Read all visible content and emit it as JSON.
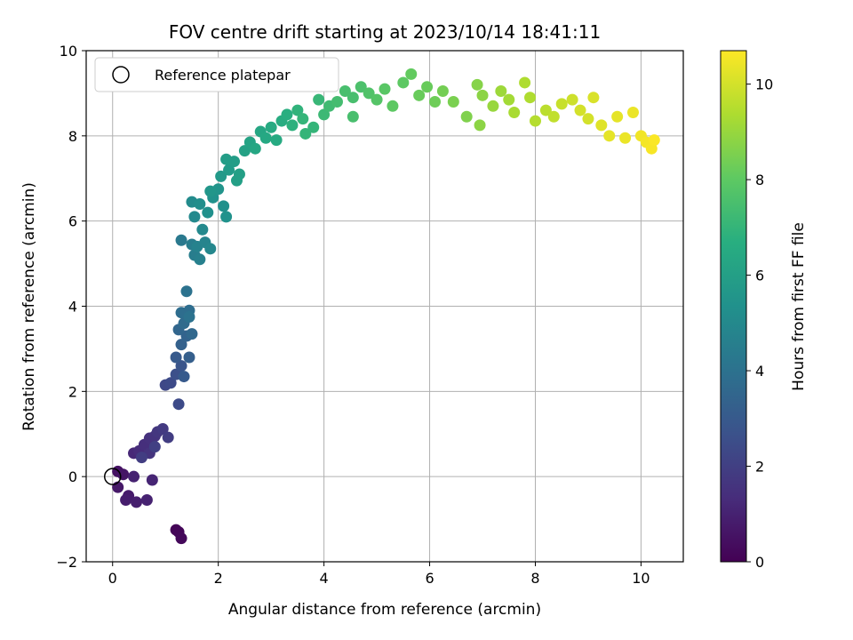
{
  "chart_data": {
    "type": "scatter",
    "title": "FOV centre drift starting at 2023/10/14 18:41:11",
    "xlabel": "Angular distance from reference (arcmin)",
    "ylabel": "Rotation from reference (arcmin)",
    "xlim": [
      -0.5,
      10.8
    ],
    "ylim": [
      -2,
      10
    ],
    "xticks": [
      "0",
      "2",
      "4",
      "6",
      "8",
      "10"
    ],
    "yticks": [
      "−2",
      "0",
      "2",
      "4",
      "6",
      "8",
      "10"
    ],
    "grid": true,
    "legend": {
      "position": "top-left",
      "entries": [
        "Reference platepar"
      ]
    },
    "reference_point": {
      "x": 0,
      "y": 0
    },
    "colorbar": {
      "label": "Hours from first FF file",
      "range": [
        0,
        10.7
      ],
      "ticks": [
        "0",
        "2",
        "4",
        "6",
        "8",
        "10"
      ],
      "colormap": "viridis"
    },
    "points": [
      {
        "x": 1.2,
        "y": -1.25,
        "t": 0.1
      },
      {
        "x": 1.25,
        "y": -1.3,
        "t": 0.15
      },
      {
        "x": 1.3,
        "y": -1.45,
        "t": 0.2
      },
      {
        "x": 0.1,
        "y": 0.12,
        "t": 0.5
      },
      {
        "x": 0.2,
        "y": 0.05,
        "t": 0.6
      },
      {
        "x": 0.1,
        "y": -0.25,
        "t": 0.7
      },
      {
        "x": 0.3,
        "y": -0.45,
        "t": 0.8
      },
      {
        "x": 0.25,
        "y": -0.55,
        "t": 0.85
      },
      {
        "x": 0.45,
        "y": -0.6,
        "t": 0.9
      },
      {
        "x": 0.65,
        "y": -0.55,
        "t": 1.0
      },
      {
        "x": 0.4,
        "y": 0.0,
        "t": 1.0
      },
      {
        "x": 0.75,
        "y": -0.08,
        "t": 1.1
      },
      {
        "x": 0.4,
        "y": 0.55,
        "t": 1.2
      },
      {
        "x": 0.5,
        "y": 0.6,
        "t": 1.3
      },
      {
        "x": 0.6,
        "y": 0.75,
        "t": 1.4
      },
      {
        "x": 0.7,
        "y": 0.9,
        "t": 1.5
      },
      {
        "x": 0.8,
        "y": 0.95,
        "t": 1.6
      },
      {
        "x": 0.7,
        "y": 0.55,
        "t": 1.6
      },
      {
        "x": 0.85,
        "y": 1.05,
        "t": 1.7
      },
      {
        "x": 0.95,
        "y": 1.12,
        "t": 1.8
      },
      {
        "x": 1.05,
        "y": 0.92,
        "t": 1.9
      },
      {
        "x": 0.55,
        "y": 0.45,
        "t": 1.9
      },
      {
        "x": 0.8,
        "y": 0.7,
        "t": 2.0
      },
      {
        "x": 1.0,
        "y": 2.15,
        "t": 2.3
      },
      {
        "x": 1.1,
        "y": 2.2,
        "t": 2.4
      },
      {
        "x": 1.25,
        "y": 1.7,
        "t": 2.4
      },
      {
        "x": 1.2,
        "y": 2.4,
        "t": 2.6
      },
      {
        "x": 1.3,
        "y": 2.6,
        "t": 2.8
      },
      {
        "x": 1.2,
        "y": 2.8,
        "t": 3.0
      },
      {
        "x": 1.35,
        "y": 2.35,
        "t": 3.0
      },
      {
        "x": 1.45,
        "y": 2.8,
        "t": 3.2
      },
      {
        "x": 1.3,
        "y": 3.1,
        "t": 3.3
      },
      {
        "x": 1.4,
        "y": 3.3,
        "t": 3.4
      },
      {
        "x": 1.25,
        "y": 3.45,
        "t": 3.5
      },
      {
        "x": 1.5,
        "y": 3.35,
        "t": 3.6
      },
      {
        "x": 1.35,
        "y": 3.6,
        "t": 3.7
      },
      {
        "x": 1.3,
        "y": 3.85,
        "t": 3.8
      },
      {
        "x": 1.45,
        "y": 3.9,
        "t": 3.8
      },
      {
        "x": 1.4,
        "y": 4.35,
        "t": 4.0
      },
      {
        "x": 1.45,
        "y": 3.75,
        "t": 4.0
      },
      {
        "x": 1.3,
        "y": 5.55,
        "t": 4.3
      },
      {
        "x": 1.5,
        "y": 5.45,
        "t": 4.5
      },
      {
        "x": 1.55,
        "y": 5.2,
        "t": 4.5
      },
      {
        "x": 1.65,
        "y": 5.1,
        "t": 4.6
      },
      {
        "x": 1.6,
        "y": 5.4,
        "t": 4.7
      },
      {
        "x": 1.75,
        "y": 5.5,
        "t": 4.8
      },
      {
        "x": 1.85,
        "y": 5.35,
        "t": 4.9
      },
      {
        "x": 1.7,
        "y": 5.8,
        "t": 5.0
      },
      {
        "x": 1.55,
        "y": 6.1,
        "t": 5.0
      },
      {
        "x": 1.5,
        "y": 6.45,
        "t": 5.1
      },
      {
        "x": 1.65,
        "y": 6.4,
        "t": 5.2
      },
      {
        "x": 1.8,
        "y": 6.2,
        "t": 5.3
      },
      {
        "x": 1.9,
        "y": 6.55,
        "t": 5.4
      },
      {
        "x": 2.0,
        "y": 6.75,
        "t": 5.5
      },
      {
        "x": 2.1,
        "y": 6.35,
        "t": 5.3
      },
      {
        "x": 2.15,
        "y": 6.1,
        "t": 5.4
      },
      {
        "x": 1.85,
        "y": 6.7,
        "t": 5.6
      },
      {
        "x": 2.05,
        "y": 7.05,
        "t": 5.7
      },
      {
        "x": 2.2,
        "y": 7.2,
        "t": 5.8
      },
      {
        "x": 2.3,
        "y": 7.4,
        "t": 5.9
      },
      {
        "x": 2.15,
        "y": 7.45,
        "t": 5.9
      },
      {
        "x": 2.4,
        "y": 7.1,
        "t": 6.0
      },
      {
        "x": 2.35,
        "y": 6.95,
        "t": 6.0
      },
      {
        "x": 2.5,
        "y": 7.65,
        "t": 6.1
      },
      {
        "x": 2.6,
        "y": 7.85,
        "t": 6.2
      },
      {
        "x": 2.7,
        "y": 7.7,
        "t": 6.3
      },
      {
        "x": 2.8,
        "y": 8.1,
        "t": 6.3
      },
      {
        "x": 2.9,
        "y": 7.95,
        "t": 6.4
      },
      {
        "x": 3.0,
        "y": 8.2,
        "t": 6.5
      },
      {
        "x": 3.1,
        "y": 7.9,
        "t": 6.5
      },
      {
        "x": 3.2,
        "y": 8.35,
        "t": 6.6
      },
      {
        "x": 3.3,
        "y": 8.5,
        "t": 6.7
      },
      {
        "x": 3.4,
        "y": 8.25,
        "t": 6.8
      },
      {
        "x": 3.5,
        "y": 8.6,
        "t": 6.9
      },
      {
        "x": 3.6,
        "y": 8.4,
        "t": 7.0
      },
      {
        "x": 3.65,
        "y": 8.05,
        "t": 7.0
      },
      {
        "x": 3.8,
        "y": 8.2,
        "t": 7.0
      },
      {
        "x": 3.9,
        "y": 8.85,
        "t": 7.1
      },
      {
        "x": 4.0,
        "y": 8.5,
        "t": 7.2
      },
      {
        "x": 4.1,
        "y": 8.7,
        "t": 7.3
      },
      {
        "x": 4.25,
        "y": 8.8,
        "t": 7.4
      },
      {
        "x": 4.4,
        "y": 9.05,
        "t": 7.5
      },
      {
        "x": 4.55,
        "y": 8.9,
        "t": 7.5
      },
      {
        "x": 4.55,
        "y": 8.45,
        "t": 7.5
      },
      {
        "x": 4.7,
        "y": 9.15,
        "t": 7.6
      },
      {
        "x": 4.85,
        "y": 9.0,
        "t": 7.7
      },
      {
        "x": 5.0,
        "y": 8.85,
        "t": 7.8
      },
      {
        "x": 5.15,
        "y": 9.1,
        "t": 7.9
      },
      {
        "x": 5.3,
        "y": 8.7,
        "t": 8.0
      },
      {
        "x": 5.5,
        "y": 9.25,
        "t": 8.0
      },
      {
        "x": 5.65,
        "y": 9.45,
        "t": 8.1
      },
      {
        "x": 5.8,
        "y": 8.95,
        "t": 8.2
      },
      {
        "x": 5.95,
        "y": 9.15,
        "t": 8.2
      },
      {
        "x": 6.1,
        "y": 8.8,
        "t": 8.3
      },
      {
        "x": 6.25,
        "y": 9.05,
        "t": 8.4
      },
      {
        "x": 6.45,
        "y": 8.8,
        "t": 8.5
      },
      {
        "x": 6.7,
        "y": 8.45,
        "t": 8.6
      },
      {
        "x": 6.9,
        "y": 9.2,
        "t": 8.7
      },
      {
        "x": 7.0,
        "y": 8.95,
        "t": 8.8
      },
      {
        "x": 6.95,
        "y": 8.25,
        "t": 8.8
      },
      {
        "x": 7.2,
        "y": 8.7,
        "t": 9.0
      },
      {
        "x": 7.35,
        "y": 9.05,
        "t": 9.1
      },
      {
        "x": 7.5,
        "y": 8.85,
        "t": 9.2
      },
      {
        "x": 7.6,
        "y": 8.55,
        "t": 9.3
      },
      {
        "x": 7.8,
        "y": 9.25,
        "t": 9.4
      },
      {
        "x": 7.9,
        "y": 8.9,
        "t": 9.4
      },
      {
        "x": 8.0,
        "y": 8.35,
        "t": 9.5
      },
      {
        "x": 8.2,
        "y": 8.6,
        "t": 9.6
      },
      {
        "x": 8.35,
        "y": 8.45,
        "t": 9.7
      },
      {
        "x": 8.5,
        "y": 8.75,
        "t": 9.8
      },
      {
        "x": 8.7,
        "y": 8.85,
        "t": 9.9
      },
      {
        "x": 8.85,
        "y": 8.6,
        "t": 10.0
      },
      {
        "x": 9.0,
        "y": 8.4,
        "t": 10.0
      },
      {
        "x": 9.1,
        "y": 8.9,
        "t": 10.1
      },
      {
        "x": 9.25,
        "y": 8.25,
        "t": 10.2
      },
      {
        "x": 9.4,
        "y": 8.0,
        "t": 10.3
      },
      {
        "x": 9.55,
        "y": 8.45,
        "t": 10.3
      },
      {
        "x": 9.7,
        "y": 7.95,
        "t": 10.4
      },
      {
        "x": 9.85,
        "y": 8.55,
        "t": 10.4
      },
      {
        "x": 10.0,
        "y": 8.0,
        "t": 10.5
      },
      {
        "x": 10.1,
        "y": 7.85,
        "t": 10.55
      },
      {
        "x": 10.2,
        "y": 7.7,
        "t": 10.6
      },
      {
        "x": 10.25,
        "y": 7.9,
        "t": 10.65
      }
    ]
  }
}
